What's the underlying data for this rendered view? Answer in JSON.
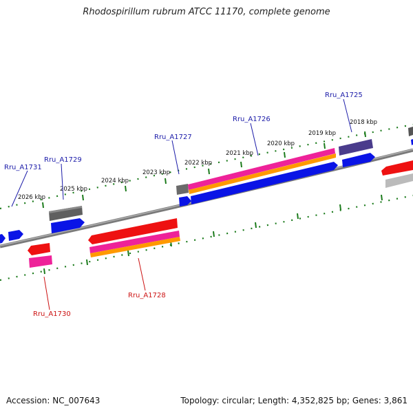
{
  "title": "Rhodospirillum rubrum ATCC 11170, complete genome",
  "footer": {
    "accession": "Accession: NC_007643",
    "stats": "Topology: circular; Length: 4,352,825 bp; Genes: 3,861"
  },
  "kbp_labels": [
    "2026 kbp",
    "2025 kbp",
    "2024 kbp",
    "2023 kbp",
    "2022 kbp",
    "2021 kbp",
    "2020 kbp",
    "2019 kbp",
    "2018 kbp"
  ],
  "gene_labels": {
    "rru_a1731": "Rru_A1731",
    "rru_a1729": "Rru_A1729",
    "rru_a1727": "Rru_A1727",
    "rru_a1726": "Rru_A1726",
    "rru_a1725": "Rru_A1725",
    "rru_a1728": "Rru_A1728",
    "rru_a1730": "Rru_A1730"
  },
  "colors": {
    "forward_label": "#1a1aa8",
    "reverse_label": "#cc1111",
    "tick": "#1a7a1a",
    "backbone": "#888888",
    "gene_blue": "#0a14e6",
    "gene_red": "#ee1111",
    "gene_magenta": "#ee2299",
    "gene_orange": "#ff9900",
    "gene_gray": "#666666",
    "gene_purple": "#4a3c8c",
    "gene_lightgray": "#bbbbbb"
  }
}
